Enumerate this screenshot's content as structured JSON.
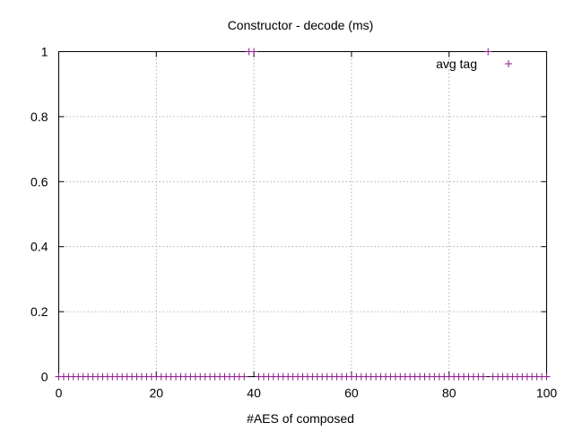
{
  "chart_data": {
    "type": "scatter",
    "title": "Constructor - decode (ms)",
    "xlabel": "#AES of composed",
    "ylabel": "",
    "xlim": [
      0,
      100
    ],
    "ylim": [
      0,
      1
    ],
    "x_ticks": [
      0,
      20,
      40,
      60,
      80,
      100
    ],
    "x_tick_labels": [
      "0",
      "20",
      "40",
      "60",
      "80",
      "100"
    ],
    "y_ticks": [
      0,
      0.2,
      0.4,
      0.6,
      0.8,
      1
    ],
    "y_tick_labels": [
      "0",
      "0.2",
      "0.4",
      "0.6",
      "0.8",
      "1"
    ],
    "grid": true,
    "legend": "top-right",
    "marker": "plus",
    "series": [
      {
        "name": "avg tag",
        "color": "#8b1a8b",
        "x": [
          0,
          1,
          2,
          3,
          4,
          5,
          6,
          7,
          8,
          9,
          10,
          11,
          12,
          13,
          14,
          15,
          16,
          17,
          18,
          19,
          20,
          21,
          22,
          23,
          24,
          25,
          26,
          27,
          28,
          29,
          30,
          31,
          32,
          33,
          34,
          35,
          36,
          37,
          38,
          39,
          40,
          41,
          42,
          43,
          44,
          45,
          46,
          47,
          48,
          49,
          50,
          51,
          52,
          53,
          54,
          55,
          56,
          57,
          58,
          59,
          60,
          61,
          62,
          63,
          64,
          65,
          66,
          67,
          68,
          69,
          70,
          71,
          72,
          73,
          74,
          75,
          76,
          77,
          78,
          79,
          80,
          81,
          82,
          83,
          84,
          85,
          86,
          87,
          88,
          89,
          90,
          91,
          92,
          93,
          94,
          95,
          96,
          97,
          98,
          99,
          100
        ],
        "y": [
          0,
          0,
          0,
          0,
          0,
          0,
          0,
          0,
          0,
          0,
          0,
          0,
          0,
          0,
          0,
          0,
          0,
          0,
          0,
          0,
          0,
          0,
          0,
          0,
          0,
          0,
          0,
          0,
          0,
          0,
          0,
          0,
          0,
          0,
          0,
          0,
          0,
          0,
          0,
          1,
          1,
          0,
          0,
          0,
          0,
          0,
          0,
          0,
          0,
          0,
          0,
          0,
          0,
          0,
          0,
          0,
          0,
          0,
          0,
          0,
          0,
          0,
          0,
          0,
          0,
          0,
          0,
          0,
          0,
          0,
          0,
          0,
          0,
          0,
          0,
          0,
          0,
          0,
          0,
          0,
          0,
          0,
          0,
          0,
          0,
          0,
          0,
          0,
          1,
          0,
          0,
          0,
          0,
          0,
          0,
          0,
          0,
          0,
          0,
          0,
          0
        ]
      }
    ]
  }
}
